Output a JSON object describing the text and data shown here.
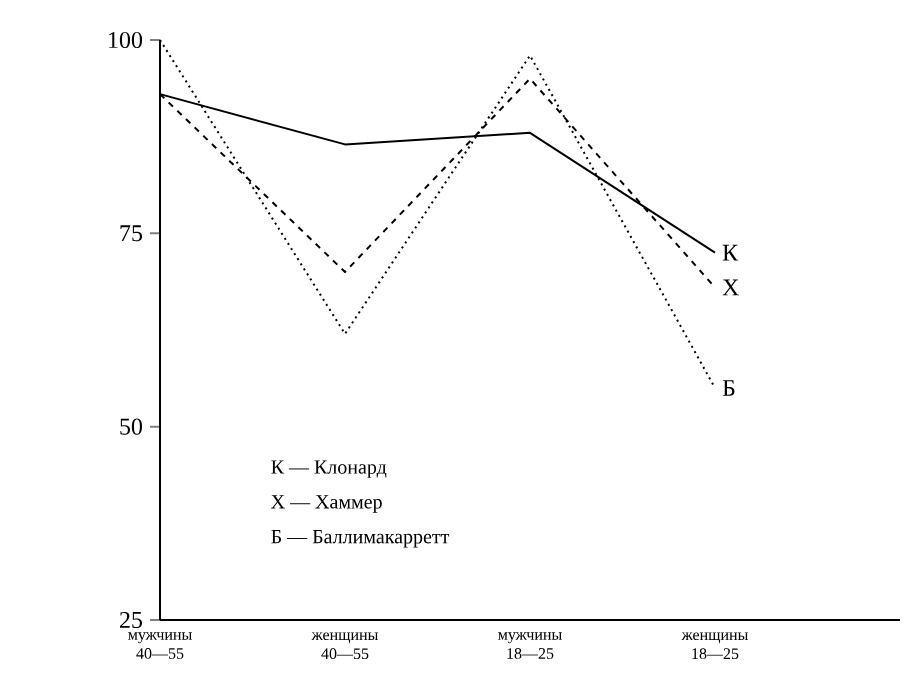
{
  "chart_data": {
    "type": "line",
    "categories": [
      "мужчины 40—55",
      "женщины 40—55",
      "мужчины 18—25",
      "женщины 18—25"
    ],
    "series": [
      {
        "name": "К",
        "color": "#000000",
        "line_style": "solid",
        "values": [
          93,
          86.5,
          88,
          72.5
        ]
      },
      {
        "name": "Х",
        "color": "#000000",
        "line_style": "dashed",
        "values": [
          93,
          70,
          95,
          68
        ]
      },
      {
        "name": "Б",
        "color": "#000000",
        "line_style": "dotted",
        "values": [
          100,
          62,
          98,
          55
        ]
      }
    ],
    "ylim": [
      25,
      100
    ],
    "yticks": [
      25,
      50,
      75,
      100
    ],
    "grid": false,
    "marker": "none",
    "annotations": [
      "К — Клонард",
      "Х — Хаммер",
      "Б — Баллимакарретт"
    ]
  }
}
